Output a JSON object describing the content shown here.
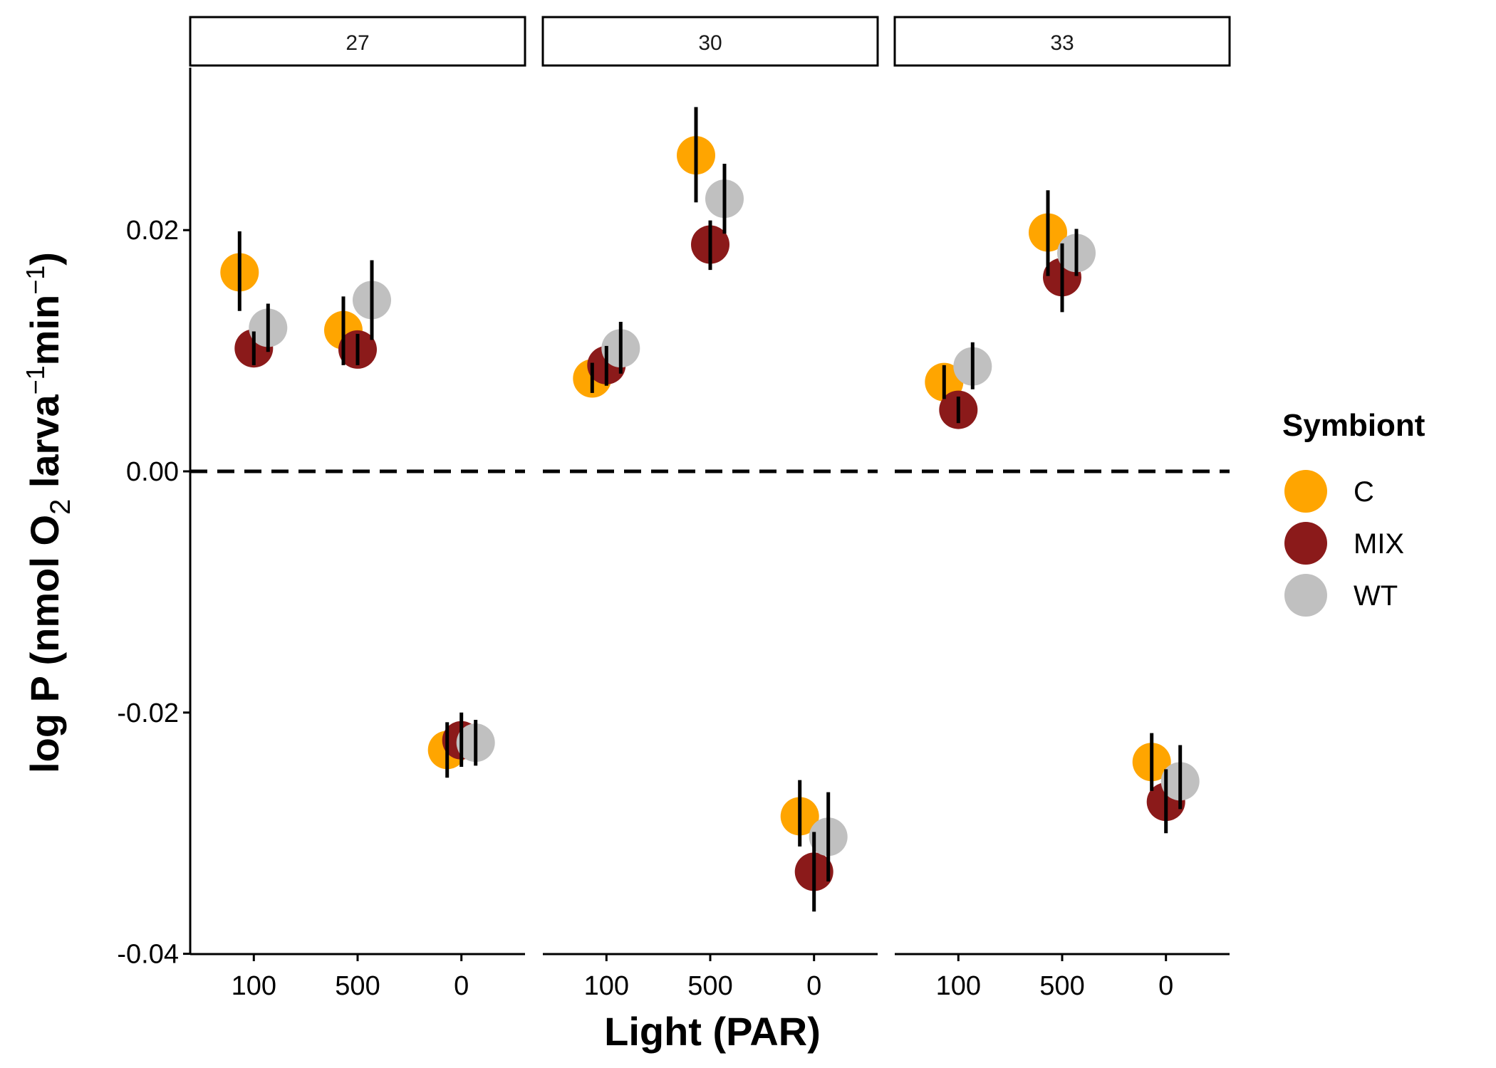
{
  "chart_data": {
    "type": "scatter",
    "facets": [
      "27",
      "30",
      "33"
    ],
    "categories": [
      "100",
      "500",
      "0"
    ],
    "xlabel": "Light (PAR)",
    "ylabel_parts": {
      "a": "log P (nmol O",
      "b": "2",
      "c": " larva",
      "d": "−1",
      "e": "min",
      "f": "−1",
      "g": ")"
    },
    "ylim": [
      -0.04,
      0.034
    ],
    "yticks": [
      -0.04,
      -0.02,
      0.0,
      0.02
    ],
    "ytick_labels": [
      "-0.04",
      "-0.02",
      "0.00",
      "0.02"
    ],
    "reference_line": 0.0,
    "legend": {
      "title": "Symbiont",
      "position": "right"
    },
    "series": [
      {
        "name": "C",
        "color": "#FFA500",
        "points": {
          "27": [
            {
              "x": "100",
              "y": 0.0165,
              "ymin": 0.0133,
              "ymax": 0.0199
            },
            {
              "x": "500",
              "y": 0.0117,
              "ymin": 0.0088,
              "ymax": 0.0145
            },
            {
              "x": "0",
              "y": -0.0231,
              "ymin": -0.0254,
              "ymax": -0.0208
            }
          ],
          "30": [
            {
              "x": "100",
              "y": 0.0077,
              "ymin": 0.0065,
              "ymax": 0.009
            },
            {
              "x": "500",
              "y": 0.0262,
              "ymin": 0.0223,
              "ymax": 0.0302
            },
            {
              "x": "0",
              "y": -0.0286,
              "ymin": -0.0311,
              "ymax": -0.0256
            }
          ],
          "33": [
            {
              "x": "100",
              "y": 0.0074,
              "ymin": 0.006,
              "ymax": 0.0088
            },
            {
              "x": "500",
              "y": 0.0198,
              "ymin": 0.0162,
              "ymax": 0.0233
            },
            {
              "x": "0",
              "y": -0.0241,
              "ymin": -0.0265,
              "ymax": -0.0217
            }
          ]
        }
      },
      {
        "name": "MIX",
        "color": "#8B1A1A",
        "points": {
          "27": [
            {
              "x": "100",
              "y": 0.0102,
              "ymin": 0.0088,
              "ymax": 0.0116
            },
            {
              "x": "500",
              "y": 0.0101,
              "ymin": 0.0088,
              "ymax": 0.0114
            },
            {
              "x": "0",
              "y": -0.0223,
              "ymin": -0.0245,
              "ymax": -0.02
            }
          ],
          "30": [
            {
              "x": "100",
              "y": 0.0088,
              "ymin": 0.0071,
              "ymax": 0.0104
            },
            {
              "x": "500",
              "y": 0.0188,
              "ymin": 0.0167,
              "ymax": 0.0208
            },
            {
              "x": "0",
              "y": -0.0332,
              "ymin": -0.0365,
              "ymax": -0.0299
            }
          ],
          "33": [
            {
              "x": "100",
              "y": 0.0051,
              "ymin": 0.004,
              "ymax": 0.0062
            },
            {
              "x": "500",
              "y": 0.0161,
              "ymin": 0.0132,
              "ymax": 0.0189
            },
            {
              "x": "0",
              "y": -0.0274,
              "ymin": -0.03,
              "ymax": -0.0247
            }
          ]
        }
      },
      {
        "name": "WT",
        "color": "#C0C0C0",
        "points": {
          "27": [
            {
              "x": "100",
              "y": 0.0119,
              "ymin": 0.0099,
              "ymax": 0.0139
            },
            {
              "x": "500",
              "y": 0.0142,
              "ymin": 0.0109,
              "ymax": 0.0175
            },
            {
              "x": "0",
              "y": -0.0225,
              "ymin": -0.0244,
              "ymax": -0.0206
            }
          ],
          "30": [
            {
              "x": "100",
              "y": 0.0102,
              "ymin": 0.0081,
              "ymax": 0.0124
            },
            {
              "x": "500",
              "y": 0.0226,
              "ymin": 0.0197,
              "ymax": 0.0255
            },
            {
              "x": "0",
              "y": -0.0303,
              "ymin": -0.034,
              "ymax": -0.0266
            }
          ],
          "33": [
            {
              "x": "100",
              "y": 0.0087,
              "ymin": 0.0068,
              "ymax": 0.0107
            },
            {
              "x": "500",
              "y": 0.0181,
              "ymin": 0.0162,
              "ymax": 0.0201
            },
            {
              "x": "0",
              "y": -0.0257,
              "ymin": -0.028,
              "ymax": -0.0227
            }
          ]
        }
      }
    ]
  }
}
